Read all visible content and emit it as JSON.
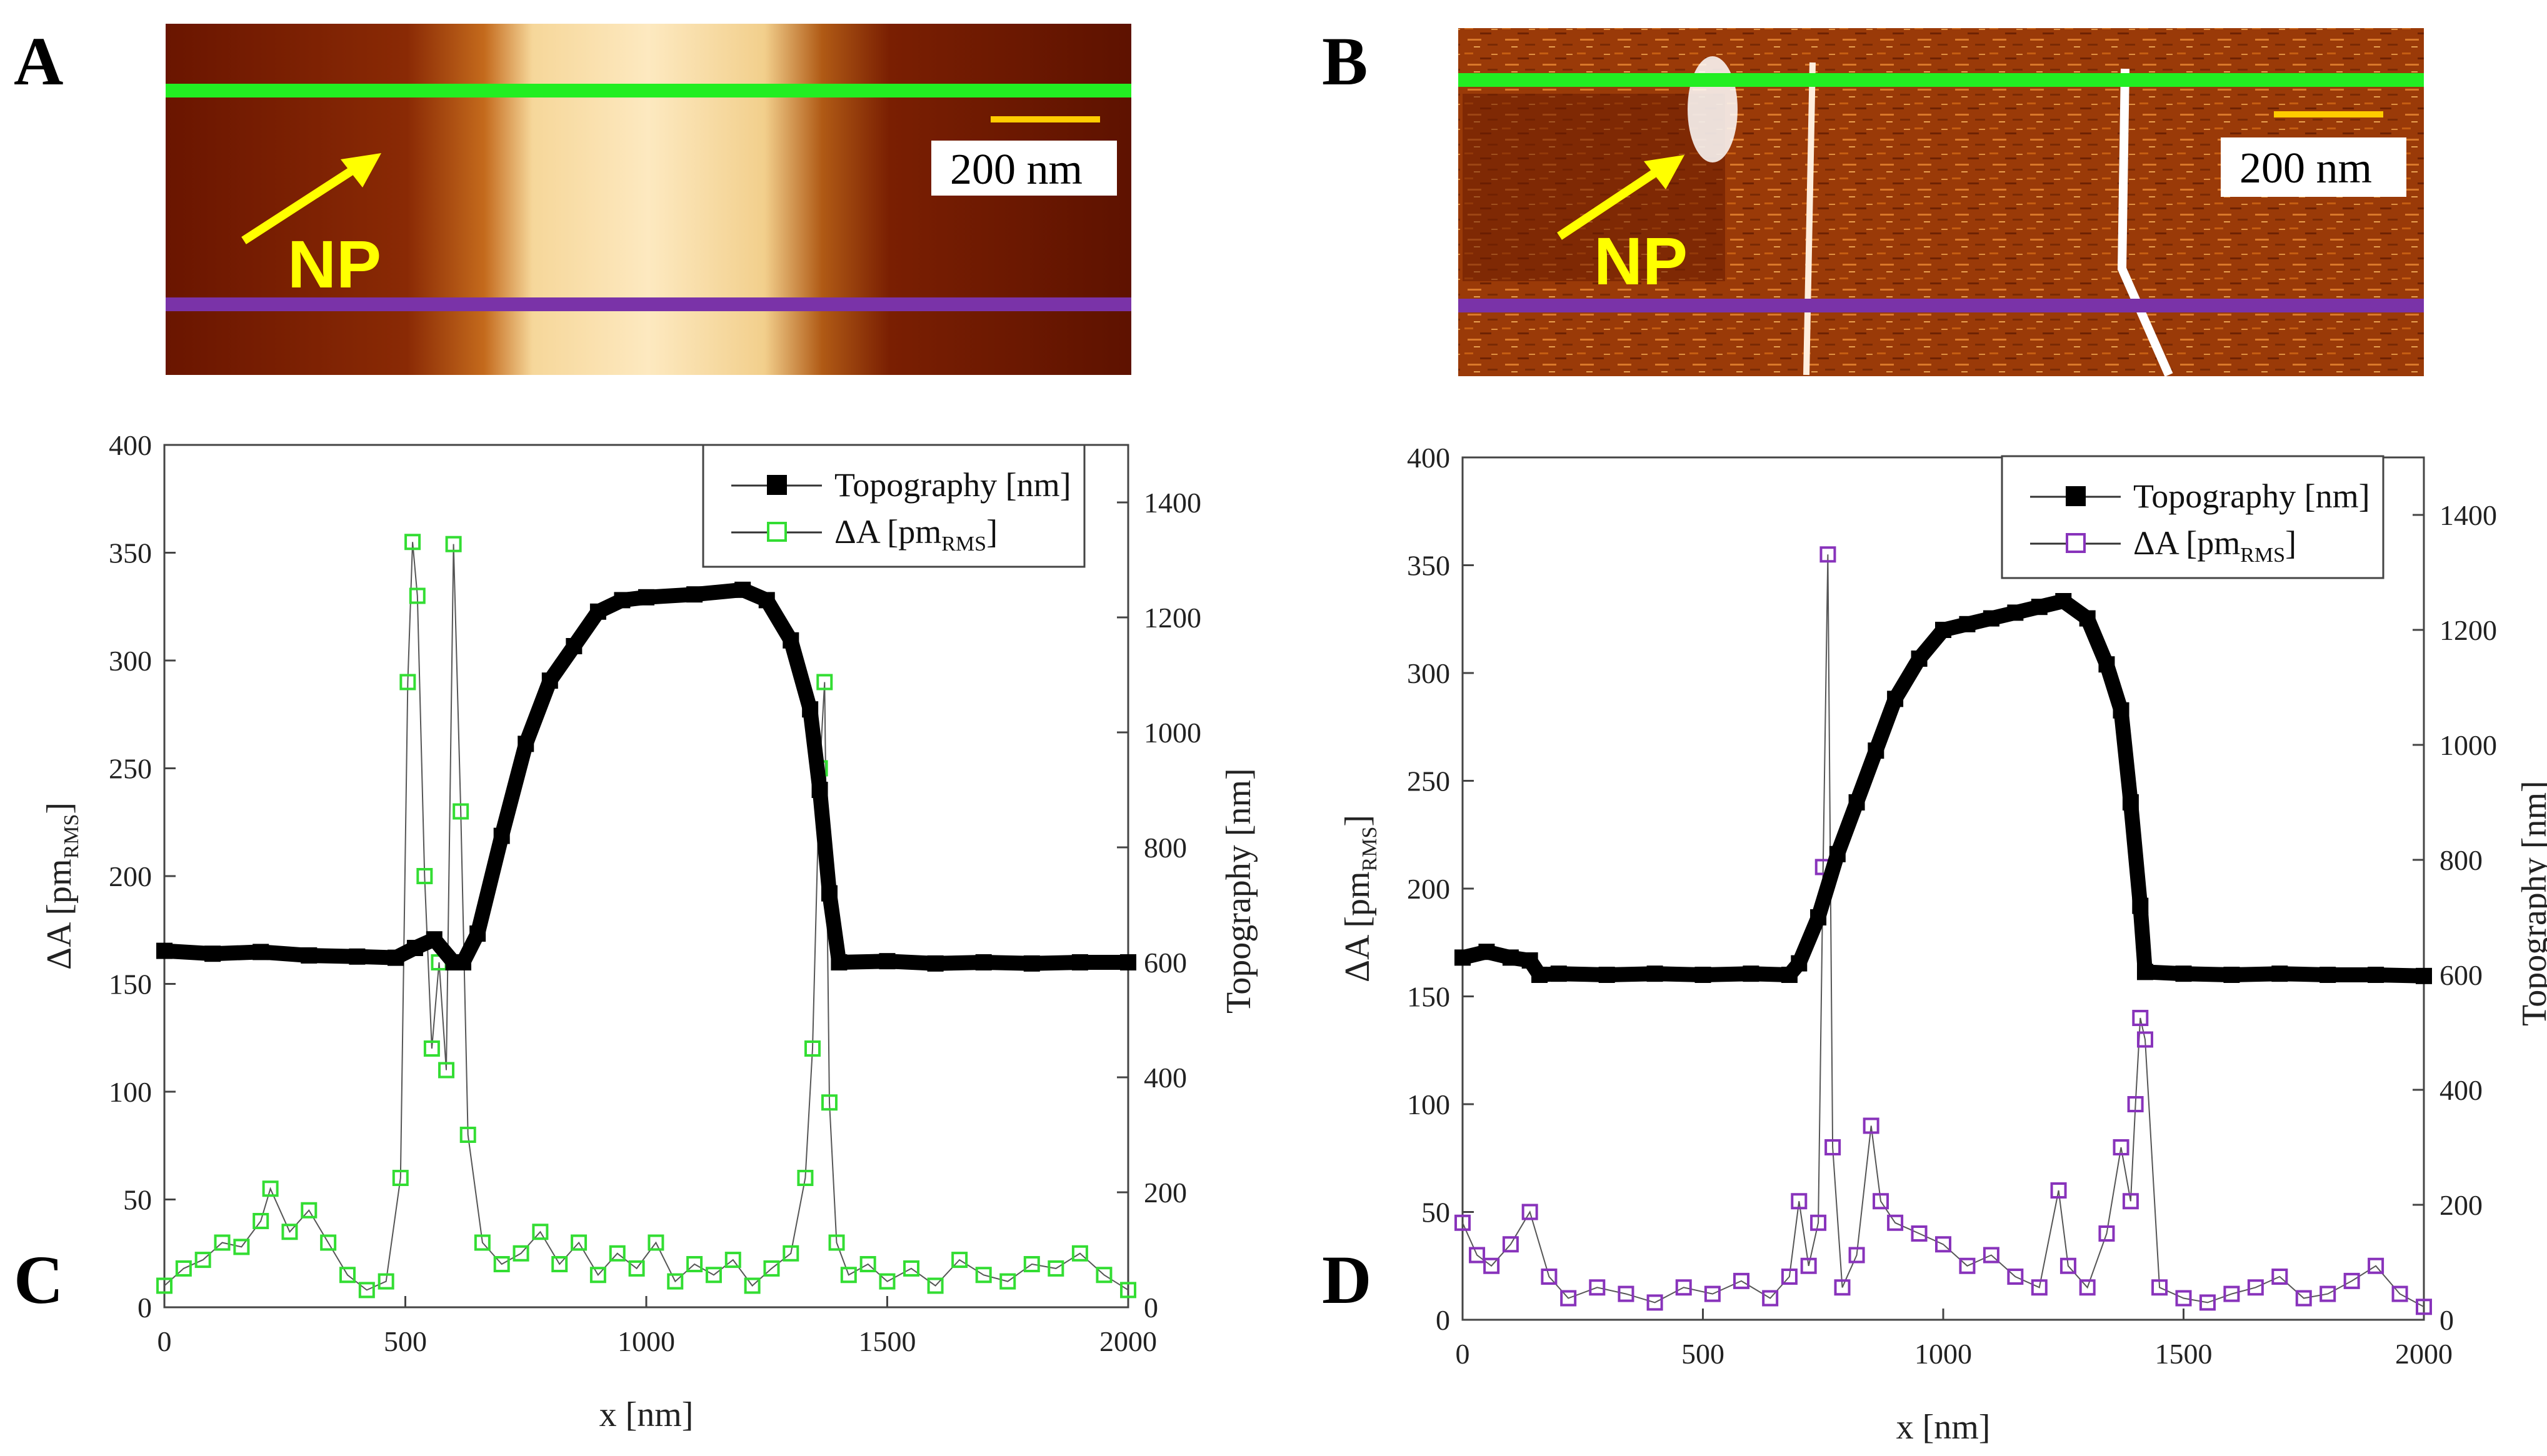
{
  "panels": {
    "A": "A",
    "B": "B",
    "C": "C",
    "D": "D"
  },
  "images": [
    {
      "id": "A",
      "scale_bar": "200 nm",
      "arrow_label": "NP",
      "kind": "topography"
    },
    {
      "id": "B",
      "scale_bar": "200 nm",
      "arrow_label": "NP",
      "kind": "amplitude"
    }
  ],
  "colors": {
    "green_line": "#22ee22",
    "purple_line": "#7a33a8",
    "topo_marker": "#000000",
    "green_marker": "#33dd33",
    "purple_marker": "#8833bb",
    "arrow": "#ffff00"
  },
  "chart_data": [
    {
      "id": "C",
      "type": "scatter",
      "xlabel": "x [nm]",
      "ylabel_left": "ΔA [pm_RMS]",
      "ylabel_right": "Topography [nm]",
      "xlim": [
        0,
        2000
      ],
      "ylim_left": [
        0,
        400
      ],
      "ylim_right": [
        0,
        1500
      ],
      "x_ticks": [
        0,
        500,
        1000,
        1500,
        2000
      ],
      "y_ticks_left": [
        0,
        50,
        100,
        150,
        200,
        250,
        300,
        350,
        400
      ],
      "y_ticks_right": [
        0,
        200,
        400,
        600,
        800,
        1000,
        1200,
        1400
      ],
      "legend": [
        "Topography [nm]",
        "ΔA [pm_RMS]"
      ],
      "series": [
        {
          "name": "Topography [nm]",
          "axis": "right",
          "marker": "filled-square",
          "x": [
            0,
            100,
            200,
            300,
            400,
            480,
            520,
            560,
            600,
            620,
            650,
            700,
            750,
            800,
            850,
            900,
            950,
            1000,
            1100,
            1200,
            1250,
            1300,
            1340,
            1360,
            1380,
            1400,
            1500,
            1600,
            1700,
            1800,
            1900,
            2000
          ],
          "values": [
            620,
            615,
            618,
            612,
            610,
            608,
            625,
            640,
            600,
            600,
            650,
            820,
            980,
            1090,
            1150,
            1210,
            1230,
            1235,
            1240,
            1248,
            1230,
            1160,
            1040,
            900,
            720,
            600,
            602,
            598,
            600,
            598,
            600,
            600
          ]
        },
        {
          "name": "ΔA [pm_RMS]",
          "axis": "left",
          "marker": "open-square",
          "x": [
            0,
            40,
            80,
            120,
            160,
            200,
            220,
            260,
            300,
            340,
            380,
            420,
            460,
            490,
            505,
            515,
            525,
            540,
            555,
            570,
            585,
            600,
            615,
            630,
            660,
            700,
            740,
            780,
            820,
            860,
            900,
            940,
            980,
            1020,
            1060,
            1100,
            1140,
            1180,
            1220,
            1260,
            1300,
            1330,
            1345,
            1360,
            1370,
            1380,
            1395,
            1420,
            1460,
            1500,
            1550,
            1600,
            1650,
            1700,
            1750,
            1800,
            1850,
            1900,
            1950,
            2000
          ],
          "values": [
            10,
            18,
            22,
            30,
            28,
            40,
            55,
            35,
            45,
            30,
            15,
            8,
            12,
            60,
            290,
            355,
            330,
            200,
            120,
            160,
            110,
            354,
            230,
            80,
            30,
            20,
            25,
            35,
            20,
            30,
            15,
            25,
            18,
            30,
            12,
            20,
            15,
            22,
            10,
            18,
            25,
            60,
            120,
            250,
            290,
            95,
            30,
            15,
            20,
            12,
            18,
            10,
            22,
            15,
            12,
            20,
            18,
            25,
            15,
            8
          ]
        }
      ]
    },
    {
      "id": "D",
      "type": "scatter",
      "xlabel": "x [nm]",
      "ylabel_left": "ΔA [pm_RMS]",
      "ylabel_right": "Topography [nm]",
      "xlim": [
        0,
        2000
      ],
      "ylim_left": [
        0,
        400
      ],
      "ylim_right": [
        0,
        1500
      ],
      "x_ticks": [
        0,
        500,
        1000,
        1500,
        2000
      ],
      "y_ticks_left": [
        0,
        50,
        100,
        150,
        200,
        250,
        300,
        350,
        400
      ],
      "y_ticks_right": [
        0,
        200,
        400,
        600,
        800,
        1000,
        1200,
        1400
      ],
      "legend": [
        "Topography [nm]",
        "ΔA [pm_RMS]"
      ],
      "series": [
        {
          "name": "Topography [nm]",
          "axis": "right",
          "marker": "filled-square",
          "x": [
            0,
            50,
            100,
            140,
            160,
            200,
            300,
            400,
            500,
            600,
            680,
            700,
            740,
            780,
            820,
            860,
            900,
            950,
            1000,
            1050,
            1100,
            1150,
            1200,
            1250,
            1300,
            1340,
            1370,
            1390,
            1410,
            1420,
            1500,
            1600,
            1700,
            1800,
            1900,
            2000
          ],
          "values": [
            630,
            640,
            630,
            625,
            600,
            602,
            600,
            602,
            600,
            602,
            600,
            620,
            700,
            810,
            900,
            990,
            1080,
            1150,
            1200,
            1210,
            1220,
            1230,
            1240,
            1250,
            1220,
            1140,
            1060,
            900,
            720,
            605,
            602,
            600,
            602,
            600,
            600,
            598
          ]
        },
        {
          "name": "ΔA [pm_RMS]",
          "axis": "left",
          "marker": "open-square",
          "x": [
            0,
            30,
            60,
            100,
            140,
            180,
            220,
            280,
            340,
            400,
            460,
            520,
            580,
            640,
            680,
            700,
            720,
            740,
            750,
            760,
            770,
            790,
            820,
            850,
            870,
            900,
            950,
            1000,
            1050,
            1100,
            1150,
            1200,
            1240,
            1260,
            1300,
            1340,
            1370,
            1390,
            1400,
            1410,
            1420,
            1450,
            1500,
            1550,
            1600,
            1650,
            1700,
            1750,
            1800,
            1850,
            1900,
            1950,
            2000
          ],
          "values": [
            45,
            30,
            25,
            35,
            50,
            20,
            10,
            15,
            12,
            8,
            15,
            12,
            18,
            10,
            20,
            55,
            25,
            45,
            210,
            355,
            80,
            15,
            30,
            90,
            55,
            45,
            40,
            35,
            25,
            30,
            20,
            15,
            60,
            25,
            15,
            40,
            80,
            55,
            100,
            140,
            130,
            15,
            10,
            8,
            12,
            15,
            20,
            10,
            12,
            18,
            25,
            12,
            6
          ]
        }
      ]
    }
  ]
}
